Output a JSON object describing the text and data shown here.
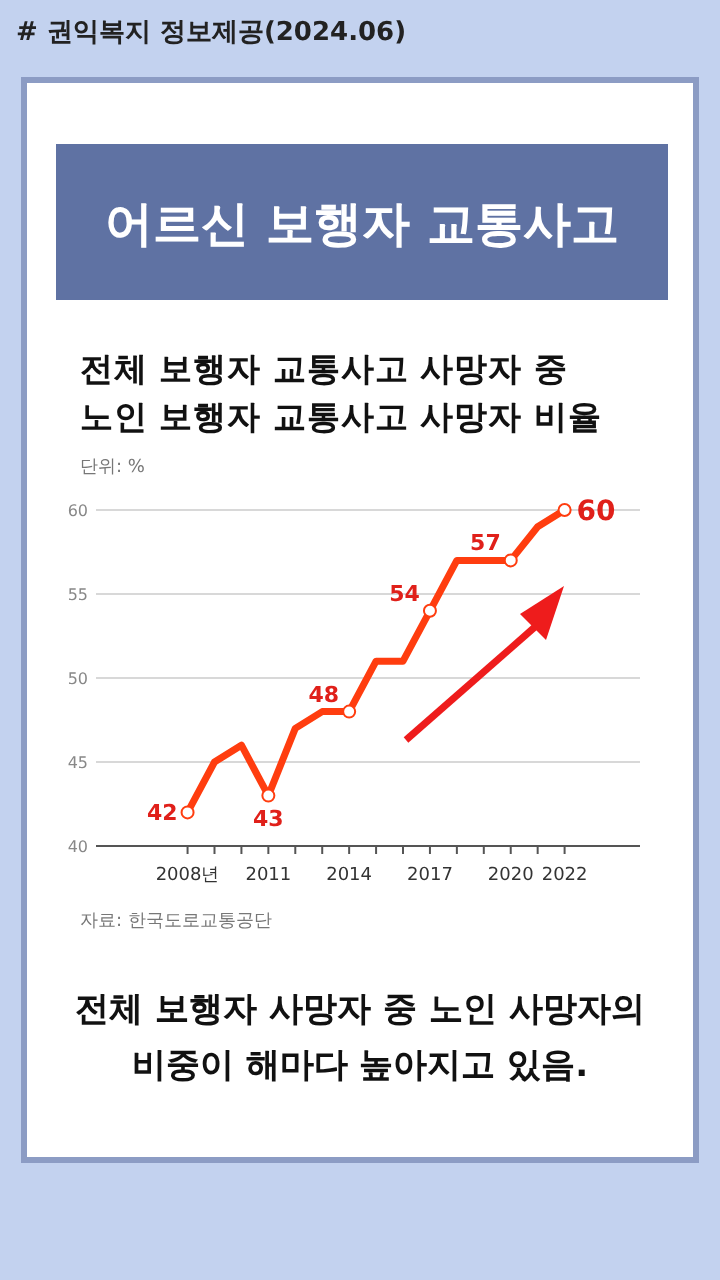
{
  "chart_data": {
    "type": "line",
    "title": "전체 보행자 교통사고 사망자 중\n노인 보행자 교통사고 사망자 비율",
    "ylabel": "단위: %",
    "annotations": [
      "# 권익복지 정보제공(2024.06)",
      "어르신 보행자 교통사고",
      "자료: 한국도로교통공단",
      "전체 보행자 사망자 중 노인 사망자의\n비중이 해마다 높아지고 있음."
    ],
    "x": [
      2008,
      2009,
      2010,
      2011,
      2012,
      2013,
      2014,
      2015,
      2016,
      2017,
      2018,
      2019,
      2020,
      2021,
      2022
    ],
    "series": [
      {
        "color": "#ff3d0f",
        "values": [
          42,
          45,
          46,
          43,
          47,
          48,
          48,
          51,
          51,
          54,
          57,
          57,
          57,
          59,
          60
        ],
        "value_labels": [
          "42",
          null,
          null,
          "43",
          null,
          null,
          "48",
          null,
          null,
          "54",
          null,
          null,
          "57",
          null,
          "60"
        ]
      }
    ],
    "xlim": [
      2004.6,
      2024.8
    ],
    "ylim": [
      40,
      60
    ],
    "xticks": [
      {
        "value": 2008,
        "label": "2008년"
      },
      {
        "value": 2009,
        "label": null
      },
      {
        "value": 2010,
        "label": null
      },
      2011,
      {
        "value": 2012,
        "label": null
      },
      {
        "value": 2013,
        "label": null
      },
      2014,
      {
        "value": 2015,
        "label": null
      },
      {
        "value": 2016,
        "label": null
      },
      2017,
      {
        "value": 2018,
        "label": null
      },
      {
        "value": 2019,
        "label": null
      },
      2020,
      {
        "value": 2021,
        "label": null
      },
      2022
    ],
    "yticks": [
      40,
      45,
      50,
      55,
      60
    ],
    "grid": "y",
    "line_style": "solid"
  }
}
